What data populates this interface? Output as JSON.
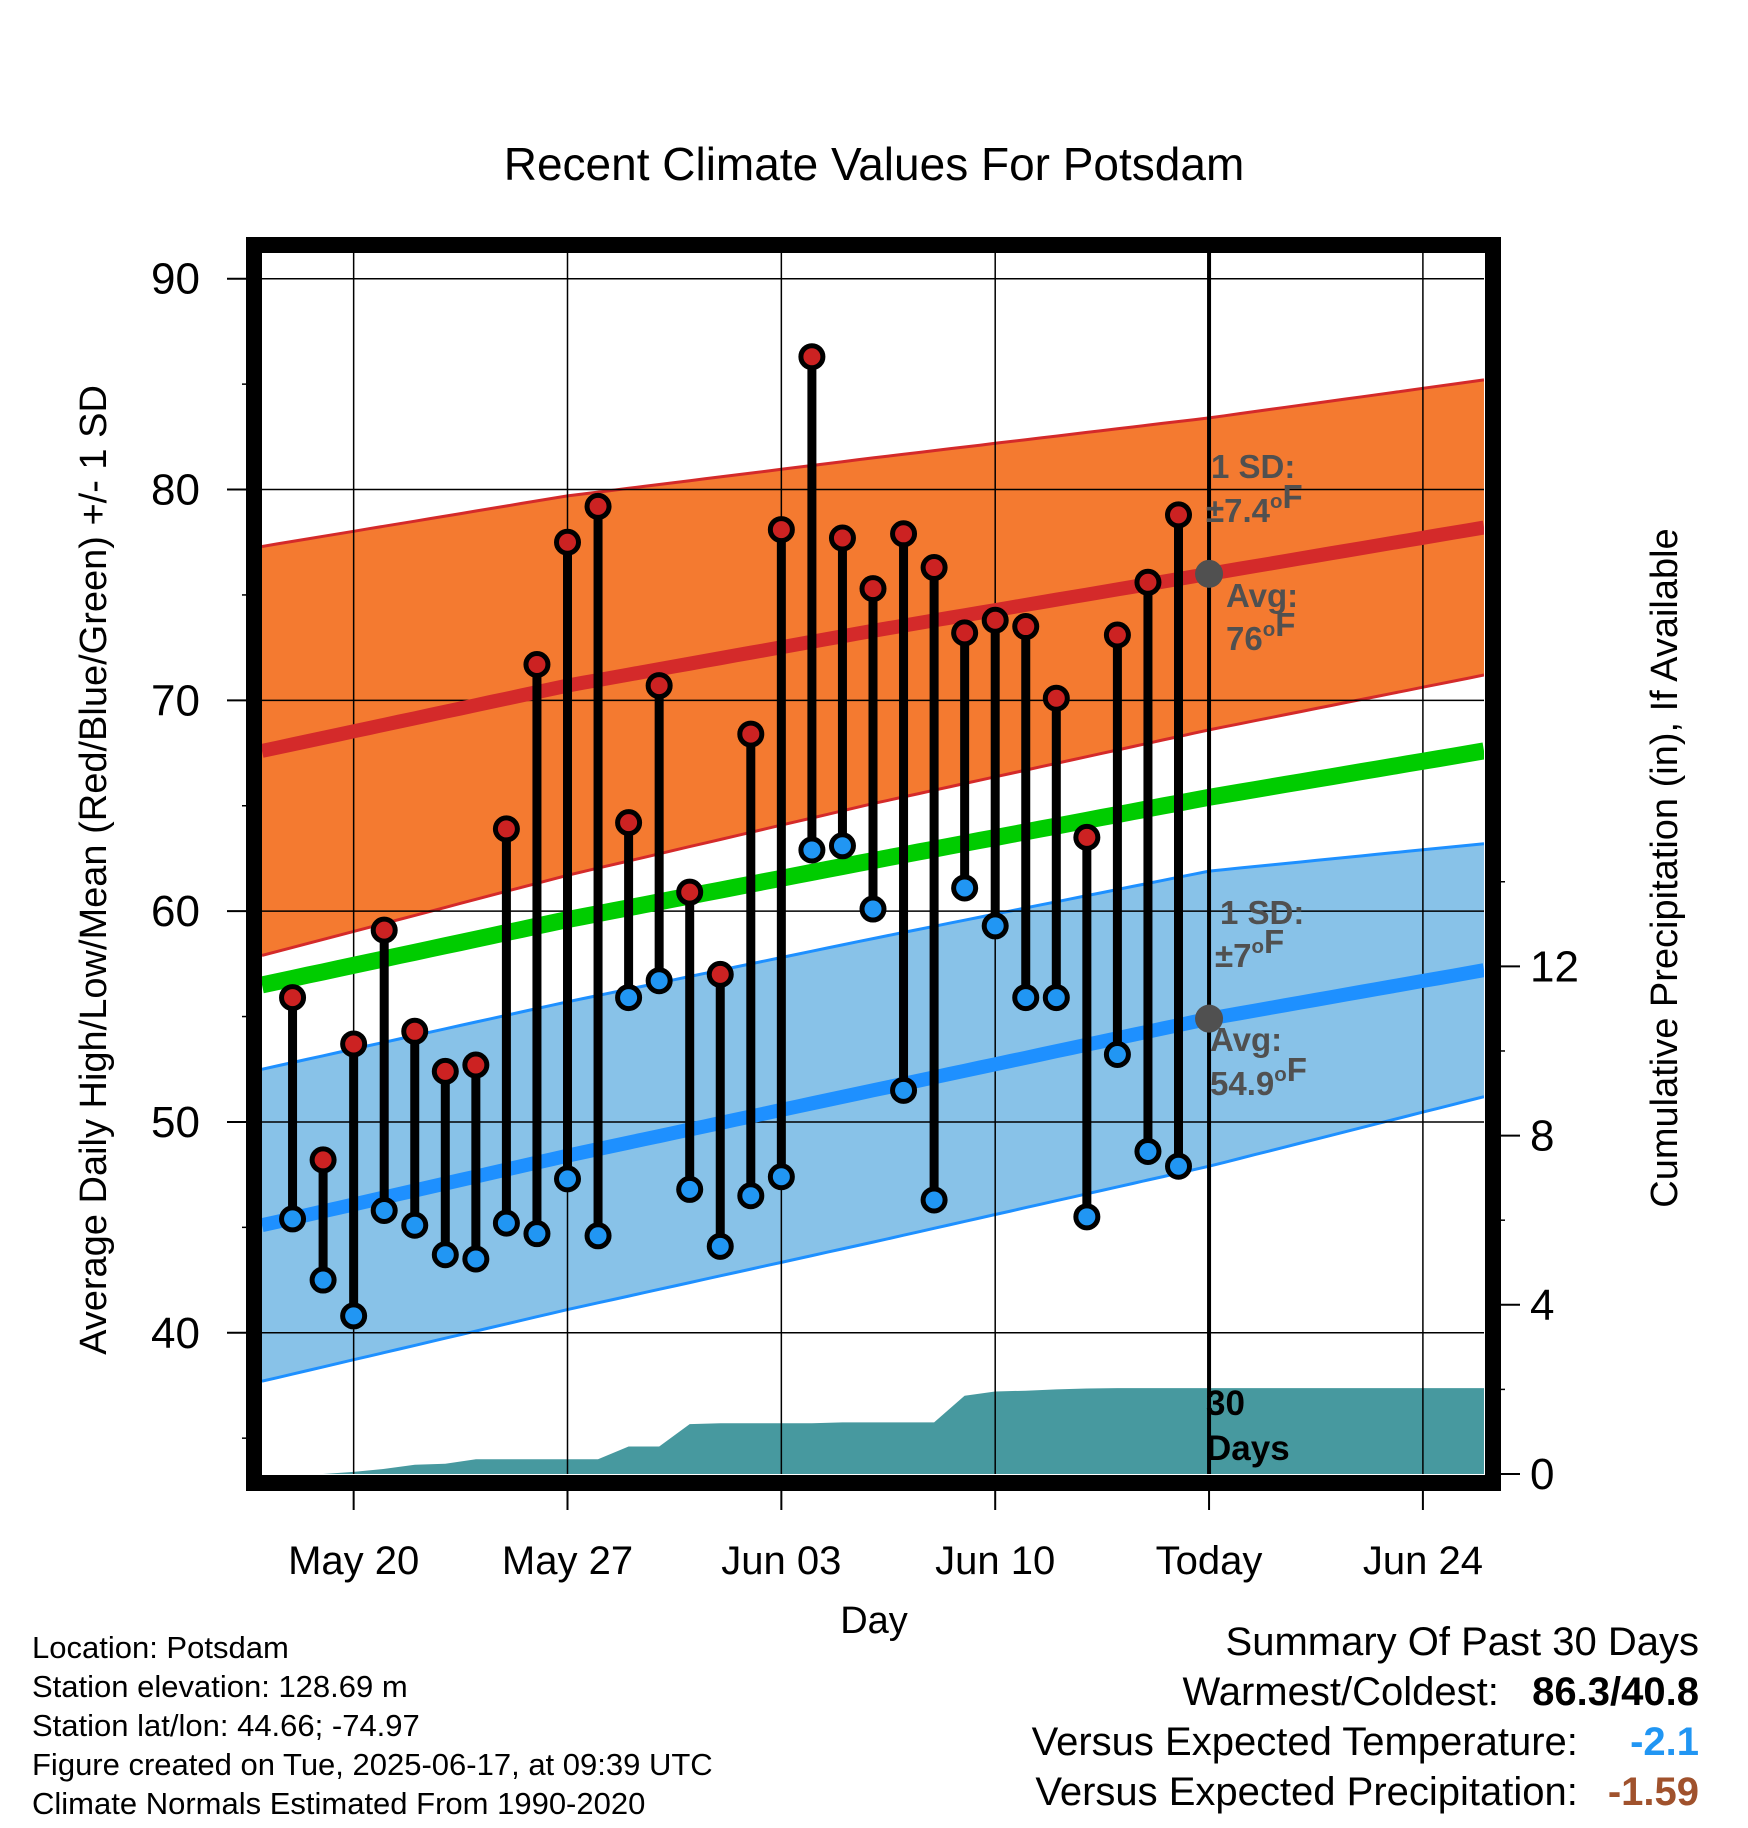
{
  "chart_data": {
    "type": "line",
    "title": "Recent Climate Values For Potsdam",
    "xlabel": "Day",
    "ylabel": "Average Daily High/Low/Mean (Red/Blue/Green) +/- 1 SD",
    "y2label": "Cumulative Precipitation (in), If Available",
    "ylim": [
      33.3,
      91.6
    ],
    "y_ticks": [
      "40",
      "50",
      "60",
      "70",
      "80",
      "90"
    ],
    "y2lim": [
      0,
      15.46
    ],
    "y2_ticks": [
      "0",
      "4",
      "8",
      "12"
    ],
    "x_range": [
      "2025-05-17",
      "2025-06-26"
    ],
    "x_ticks": [
      {
        "date": "2025-05-20",
        "label": "May 20"
      },
      {
        "date": "2025-05-27",
        "label": "May 27"
      },
      {
        "date": "2025-06-03",
        "label": "Jun 03"
      },
      {
        "date": "2025-06-10",
        "label": "Jun 10"
      },
      {
        "date": "2025-06-17",
        "label": "Today"
      },
      {
        "date": "2025-06-24",
        "label": "Jun 24"
      }
    ],
    "grid": true,
    "today": "2025-06-17",
    "colors": {
      "high_band": "#f47a30",
      "high_line": "#d42a2a",
      "low_band": "#88c2e8",
      "low_line": "#1e90ff",
      "mean_line": "#00cc00",
      "precip": "#47999f",
      "high_marker": "#cc2222",
      "low_marker": "#2196f3",
      "annotation": "#505050"
    },
    "normals": [
      {
        "date": "2025-05-17",
        "high": 67.6,
        "high_sd": 9.7,
        "low": 45.1,
        "low_sd": 7.4,
        "mean": 56.5
      },
      {
        "date": "2025-05-27",
        "high": 70.7,
        "high_sd": 9.0,
        "low": 48.4,
        "low_sd": 7.3,
        "mean": 59.6
      },
      {
        "date": "2025-06-06",
        "high": 73.3,
        "high_sd": 8.2,
        "low": 51.5,
        "low_sd": 7.2,
        "mean": 62.4
      },
      {
        "date": "2025-06-17",
        "high": 76.0,
        "high_sd": 7.4,
        "low": 54.9,
        "low_sd": 7.0,
        "mean": 65.4
      },
      {
        "date": "2025-06-26",
        "high": 78.2,
        "high_sd": 7.0,
        "low": 57.2,
        "low_sd": 6.0,
        "mean": 67.6
      }
    ],
    "series": [
      {
        "name": "High",
        "dates": [
          "2025-05-18",
          "2025-05-19",
          "2025-05-20",
          "2025-05-21",
          "2025-05-22",
          "2025-05-23",
          "2025-05-24",
          "2025-05-25",
          "2025-05-26",
          "2025-05-27",
          "2025-05-28",
          "2025-05-29",
          "2025-05-30",
          "2025-05-31",
          "2025-06-01",
          "2025-06-02",
          "2025-06-03",
          "2025-06-04",
          "2025-06-05",
          "2025-06-06",
          "2025-06-07",
          "2025-06-08",
          "2025-06-09",
          "2025-06-10",
          "2025-06-11",
          "2025-06-12",
          "2025-06-13",
          "2025-06-14",
          "2025-06-15",
          "2025-06-16"
        ],
        "values": [
          55.9,
          48.2,
          53.7,
          59.1,
          54.3,
          52.4,
          52.7,
          63.9,
          71.7,
          77.5,
          79.2,
          64.2,
          70.7,
          60.9,
          57.0,
          68.4,
          78.1,
          86.3,
          77.7,
          75.3,
          77.9,
          76.3,
          73.2,
          73.8,
          73.5,
          70.1,
          63.5,
          73.1,
          75.6,
          78.8
        ]
      },
      {
        "name": "Low",
        "dates": [
          "2025-05-18",
          "2025-05-19",
          "2025-05-20",
          "2025-05-21",
          "2025-05-22",
          "2025-05-23",
          "2025-05-24",
          "2025-05-25",
          "2025-05-26",
          "2025-05-27",
          "2025-05-28",
          "2025-05-29",
          "2025-05-30",
          "2025-05-31",
          "2025-06-01",
          "2025-06-02",
          "2025-06-03",
          "2025-06-04",
          "2025-06-05",
          "2025-06-06",
          "2025-06-07",
          "2025-06-08",
          "2025-06-09",
          "2025-06-10",
          "2025-06-11",
          "2025-06-12",
          "2025-06-13",
          "2025-06-14",
          "2025-06-15",
          "2025-06-16"
        ],
        "values": [
          45.4,
          42.5,
          40.8,
          45.8,
          45.1,
          43.7,
          43.5,
          45.2,
          44.7,
          47.3,
          44.6,
          55.9,
          56.7,
          46.8,
          44.1,
          46.5,
          47.4,
          62.9,
          63.1,
          60.1,
          51.5,
          46.3,
          61.1,
          59.3,
          55.9,
          55.9,
          45.5,
          53.2,
          48.6,
          47.9
        ]
      },
      {
        "name": "Cumulative Precipitation",
        "dates": [
          "2025-05-19",
          "2025-05-20",
          "2025-05-21",
          "2025-05-22",
          "2025-05-23",
          "2025-05-24",
          "2025-05-25",
          "2025-05-26",
          "2025-05-27",
          "2025-05-28",
          "2025-05-29",
          "2025-05-30",
          "2025-05-31",
          "2025-06-01",
          "2025-06-02",
          "2025-06-03",
          "2025-06-04",
          "2025-06-05",
          "2025-06-06",
          "2025-06-07",
          "2025-06-08",
          "2025-06-09",
          "2025-06-10",
          "2025-06-11",
          "2025-06-12",
          "2025-06-13",
          "2025-06-14",
          "2025-06-15",
          "2025-06-16",
          "2025-06-17",
          "2025-06-26"
        ],
        "values": [
          0,
          0.05,
          0.12,
          0.22,
          0.24,
          0.35,
          0.35,
          0.35,
          0.35,
          0.35,
          0.65,
          0.65,
          1.18,
          1.2,
          1.2,
          1.2,
          1.2,
          1.22,
          1.22,
          1.22,
          1.22,
          1.85,
          1.95,
          1.97,
          2.0,
          2.02,
          2.03,
          2.03,
          2.03,
          2.03,
          2.03
        ]
      }
    ],
    "annotations": {
      "high_sd": [
        "1 SD:",
        "±7.4°F"
      ],
      "high_avg": [
        "Avg:",
        "76°F"
      ],
      "low_sd": [
        "1 SD:",
        "±7°F"
      ],
      "low_avg": [
        "Avg:",
        "54.9°F"
      ],
      "days": [
        "30",
        "Days"
      ],
      "today_high_avg": 76.0,
      "today_low_avg": 54.9
    }
  },
  "info": {
    "location": "Location: Potsdam",
    "elevation": "Station elevation: 128.69 m",
    "latlon": "Station lat/lon: 44.66; -74.97",
    "created": "Figure created on Tue, 2025-06-17, at 09:39 UTC",
    "normals": "Climate Normals Estimated From 1990-2020"
  },
  "summary": {
    "title": "Summary Of Past 30 Days",
    "warm_cold_label": "Warmest/Coldest:",
    "warm_value": "86.3",
    "cold_value": "40.8",
    "temp_label": "Versus Expected Temperature:",
    "temp_value": "-2.1",
    "temp_color": "#2196f3",
    "precip_label": "Versus Expected Precipitation:",
    "precip_value": "-1.59",
    "precip_color": "#a0522d"
  }
}
